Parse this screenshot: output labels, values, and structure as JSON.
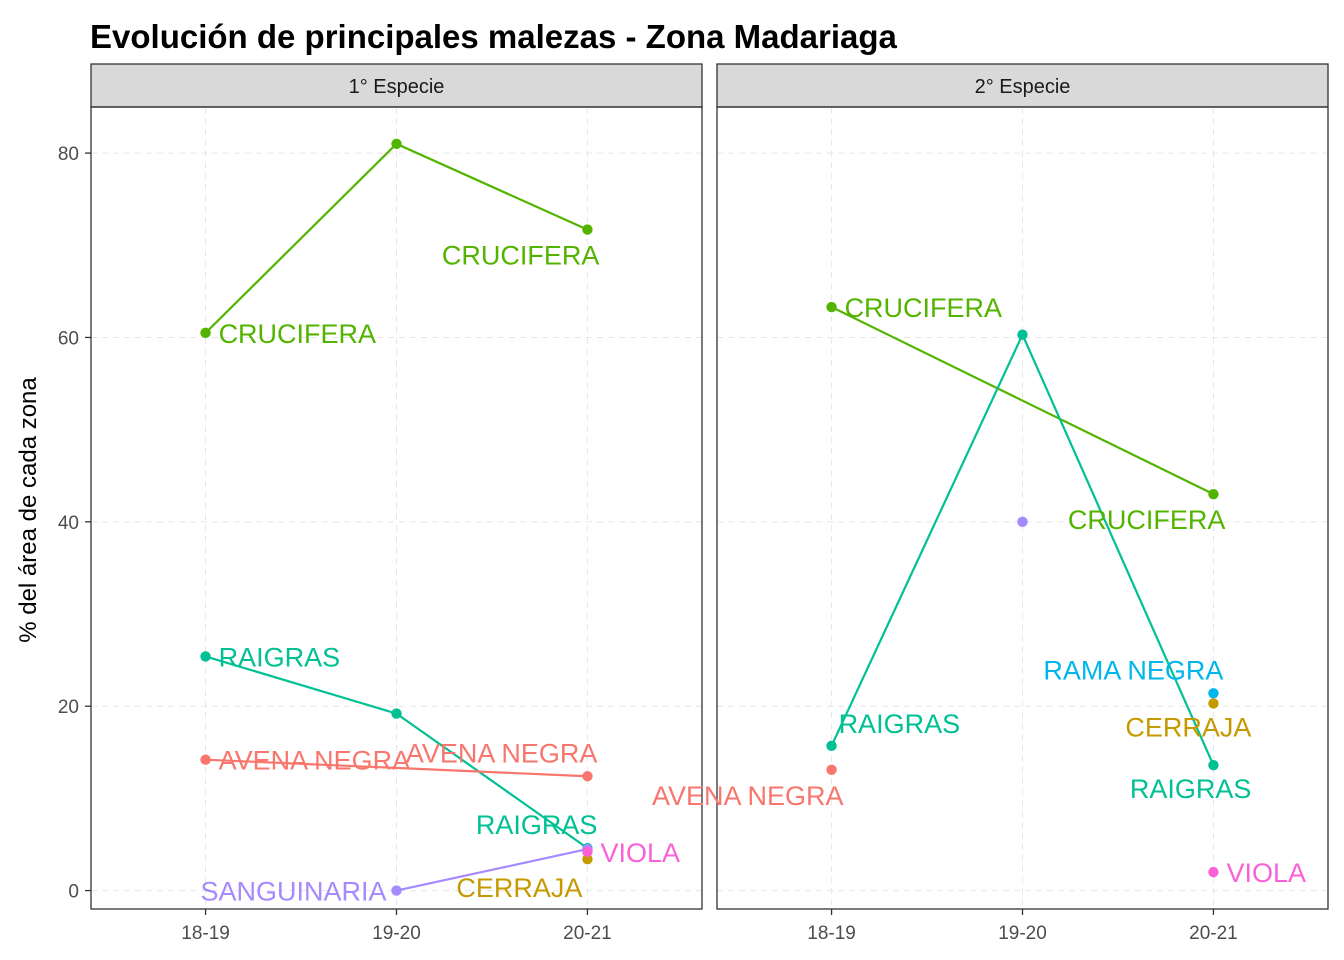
{
  "chart_data": {
    "type": "line",
    "title": "Evolución de principales malezas -  Zona Madariaga",
    "ylabel": "% del área de cada zona",
    "xlabel": "",
    "categories": [
      "18-19",
      "19-20",
      "20-21"
    ],
    "ylim": [
      -2,
      85
    ],
    "yticks": [
      0,
      20,
      40,
      60,
      80
    ],
    "grid": "dashed",
    "legend": "none",
    "colors": {
      "AVENA NEGRA": "#F8766D",
      "CERRAJA": "#C49A00",
      "CRUCIFERA": "#53B400",
      "RAIGRAS": "#00C094",
      "RAMA NEGRA": "#00B6EB",
      "SANGUINARIA": "#A58AFF",
      "VIOLA": "#FB61D7"
    },
    "panels": [
      {
        "strip": "1° Especie",
        "series": [
          {
            "name": "CRUCIFERA",
            "points": [
              {
                "x": "18-19",
                "y": 60.5
              },
              {
                "x": "19-20",
                "y": 81.0
              },
              {
                "x": "20-21",
                "y": 71.7
              }
            ]
          },
          {
            "name": "RAIGRAS",
            "points": [
              {
                "x": "18-19",
                "y": 25.4
              },
              {
                "x": "19-20",
                "y": 19.2
              },
              {
                "x": "20-21",
                "y": 4.6
              }
            ]
          },
          {
            "name": "AVENA NEGRA",
            "points": [
              {
                "x": "18-19",
                "y": 14.2
              },
              {
                "x": "20-21",
                "y": 12.4
              }
            ]
          },
          {
            "name": "SANGUINARIA",
            "points": [
              {
                "x": "19-20",
                "y": 0.0
              },
              {
                "x": "20-21",
                "y": 4.5
              }
            ]
          },
          {
            "name": "CERRAJA",
            "points": [
              {
                "x": "20-21",
                "y": 3.4
              }
            ]
          },
          {
            "name": "VIOLA",
            "points": [
              {
                "x": "20-21",
                "y": 4.2
              }
            ]
          }
        ],
        "labels": [
          {
            "text": "CRUCIFERA",
            "series": "CRUCIFERA",
            "x": "18-19",
            "y": 60.5,
            "pos": "right"
          },
          {
            "text": "CRUCIFERA",
            "series": "CRUCIFERA",
            "x": "20-21",
            "y": 71.7,
            "pos": "below"
          },
          {
            "text": "RAIGRAS",
            "series": "RAIGRAS",
            "x": "18-19",
            "y": 25.4,
            "pos": "right"
          },
          {
            "text": "RAIGRAS",
            "series": "RAIGRAS",
            "x": "20-21",
            "y": 4.6,
            "pos": "above"
          },
          {
            "text": "AVENA NEGRA",
            "series": "AVENA NEGRA",
            "x": "18-19",
            "y": 14.2,
            "pos": "right"
          },
          {
            "text": "AVENA NEGRA",
            "series": "AVENA NEGRA",
            "x": "20-21",
            "y": 12.4,
            "pos": "above"
          },
          {
            "text": "SANGUINARIA",
            "series": "SANGUINARIA",
            "x": "19-20",
            "y": 0.0,
            "pos": "left"
          },
          {
            "text": "CERRAJA",
            "series": "CERRAJA",
            "x": "20-21",
            "y": 3.4,
            "pos": "belowleft"
          },
          {
            "text": "VIOLA",
            "series": "VIOLA",
            "x": "20-21",
            "y": 4.2,
            "pos": "right"
          }
        ]
      },
      {
        "strip": "2° Especie",
        "series": [
          {
            "name": "CRUCIFERA",
            "points": [
              {
                "x": "18-19",
                "y": 63.3
              },
              {
                "x": "20-21",
                "y": 43.0
              }
            ]
          },
          {
            "name": "RAIGRAS",
            "points": [
              {
                "x": "18-19",
                "y": 15.7
              },
              {
                "x": "19-20",
                "y": 60.3
              },
              {
                "x": "20-21",
                "y": 13.6
              }
            ]
          },
          {
            "name": "AVENA NEGRA",
            "points": [
              {
                "x": "18-19",
                "y": 13.1
              }
            ]
          },
          {
            "name": "SANGUINARIA",
            "points": [
              {
                "x": "19-20",
                "y": 40.0
              }
            ]
          },
          {
            "name": "RAMA NEGRA",
            "points": [
              {
                "x": "20-21",
                "y": 21.4
              }
            ]
          },
          {
            "name": "CERRAJA",
            "points": [
              {
                "x": "20-21",
                "y": 20.3
              }
            ]
          },
          {
            "name": "VIOLA",
            "points": [
              {
                "x": "20-21",
                "y": 2.0
              }
            ]
          }
        ],
        "labels": [
          {
            "text": "CRUCIFERA",
            "series": "CRUCIFERA",
            "x": "18-19",
            "y": 63.3,
            "pos": "right"
          },
          {
            "text": "CRUCIFERA",
            "series": "CRUCIFERA",
            "x": "20-21",
            "y": 43.0,
            "pos": "below"
          },
          {
            "text": "RAIGRAS",
            "series": "RAIGRAS",
            "x": "18-19",
            "y": 15.7,
            "pos": "aboveright"
          },
          {
            "text": "RAIGRAS",
            "series": "RAIGRAS",
            "x": "20-21",
            "y": 13.6,
            "pos": "belowright"
          },
          {
            "text": "AVENA NEGRA",
            "series": "AVENA NEGRA",
            "x": "18-19",
            "y": 13.1,
            "pos": "below"
          },
          {
            "text": "RAMA NEGRA",
            "series": "RAMA NEGRA",
            "x": "20-21",
            "y": 21.4,
            "pos": "above"
          },
          {
            "text": "CERRAJA",
            "series": "CERRAJA",
            "x": "20-21",
            "y": 20.3,
            "pos": "belowright"
          },
          {
            "text": "VIOLA",
            "series": "VIOLA",
            "x": "20-21",
            "y": 2.0,
            "pos": "right"
          }
        ]
      }
    ]
  }
}
